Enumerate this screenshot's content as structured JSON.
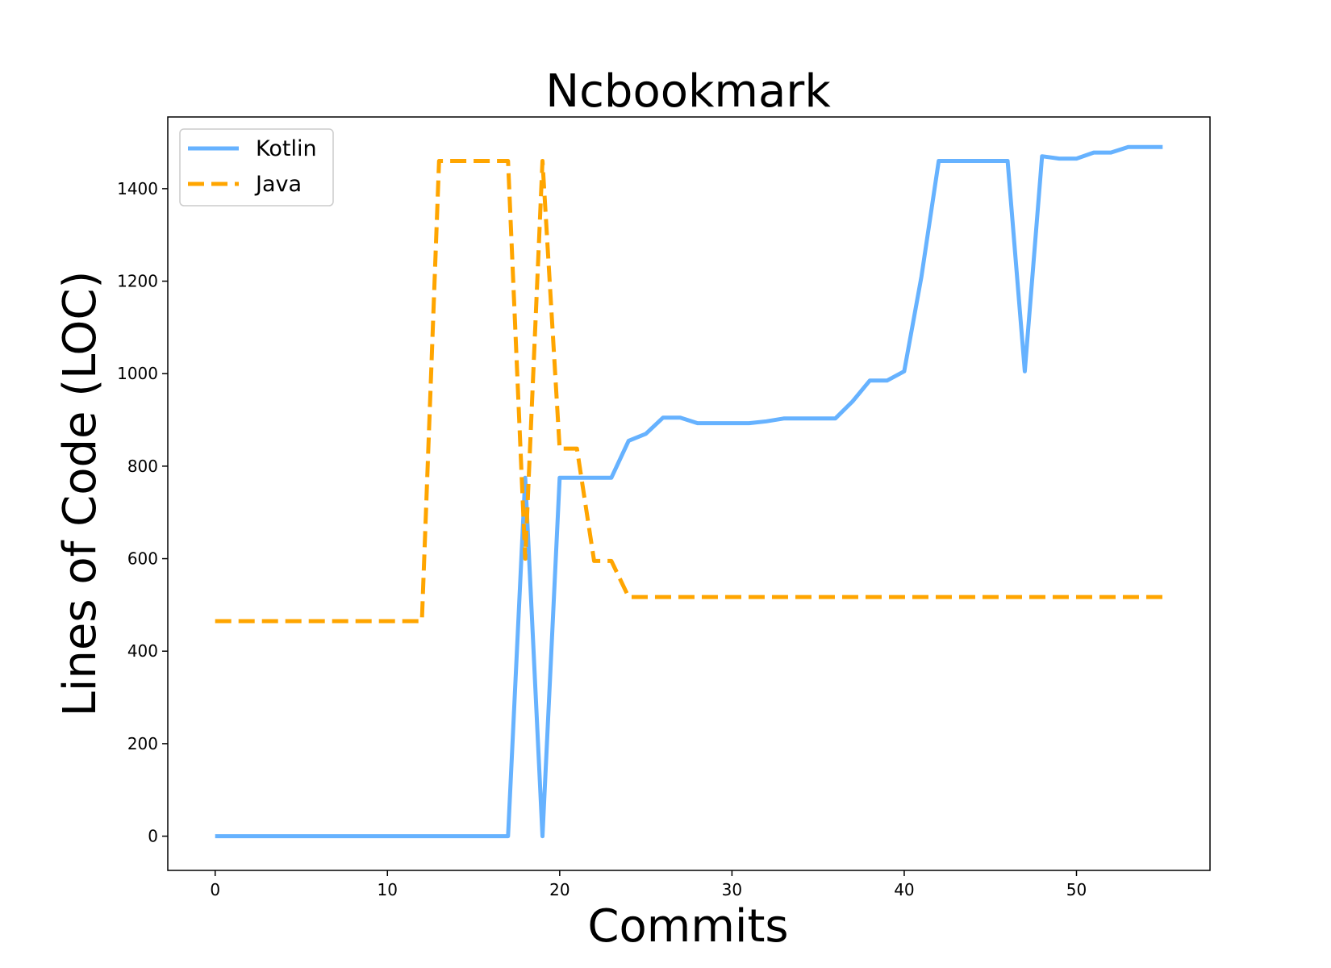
{
  "chart_data": {
    "type": "line",
    "title": "Ncbookmark",
    "xlabel": "Commits",
    "ylabel": "Lines of Code (LOC)",
    "xlim": [
      -2.75,
      57.75
    ],
    "ylim": [
      -74,
      1555
    ],
    "xticks": [
      0,
      10,
      20,
      30,
      40,
      50
    ],
    "yticks": [
      0,
      200,
      400,
      600,
      800,
      1000,
      1200,
      1400
    ],
    "grid": false,
    "legend_position": "top-left",
    "x": [
      0,
      1,
      2,
      3,
      4,
      5,
      6,
      7,
      8,
      9,
      10,
      11,
      12,
      13,
      14,
      15,
      16,
      17,
      18,
      19,
      20,
      21,
      22,
      23,
      24,
      25,
      26,
      27,
      28,
      29,
      30,
      31,
      32,
      33,
      34,
      35,
      36,
      37,
      38,
      39,
      40,
      41,
      42,
      43,
      44,
      45,
      46,
      47,
      48,
      49,
      50,
      51,
      52,
      53,
      54,
      55
    ],
    "series": [
      {
        "name": "Kotlin",
        "color": "#66b2ff",
        "style": "solid",
        "values": [
          0,
          0,
          0,
          0,
          0,
          0,
          0,
          0,
          0,
          0,
          0,
          0,
          0,
          0,
          0,
          0,
          0,
          0,
          775,
          0,
          775,
          775,
          775,
          775,
          855,
          870,
          905,
          905,
          893,
          893,
          893,
          893,
          897,
          903,
          903,
          903,
          903,
          940,
          985,
          985,
          1005,
          1210,
          1460,
          1460,
          1460,
          1460,
          1460,
          1005,
          1470,
          1465,
          1465,
          1478,
          1478,
          1490,
          1490,
          1490
        ]
      },
      {
        "name": "Java",
        "color": "#ffa500",
        "style": "dashed",
        "values": [
          465,
          465,
          465,
          465,
          465,
          465,
          465,
          465,
          465,
          465,
          465,
          465,
          465,
          1460,
          1460,
          1460,
          1460,
          1460,
          600,
          1460,
          838,
          838,
          595,
          595,
          517,
          517,
          517,
          517,
          517,
          517,
          517,
          517,
          517,
          517,
          517,
          517,
          517,
          517,
          517,
          517,
          517,
          517,
          517,
          517,
          517,
          517,
          517,
          517,
          517,
          517,
          517,
          517,
          517,
          517,
          517,
          517
        ]
      }
    ]
  }
}
